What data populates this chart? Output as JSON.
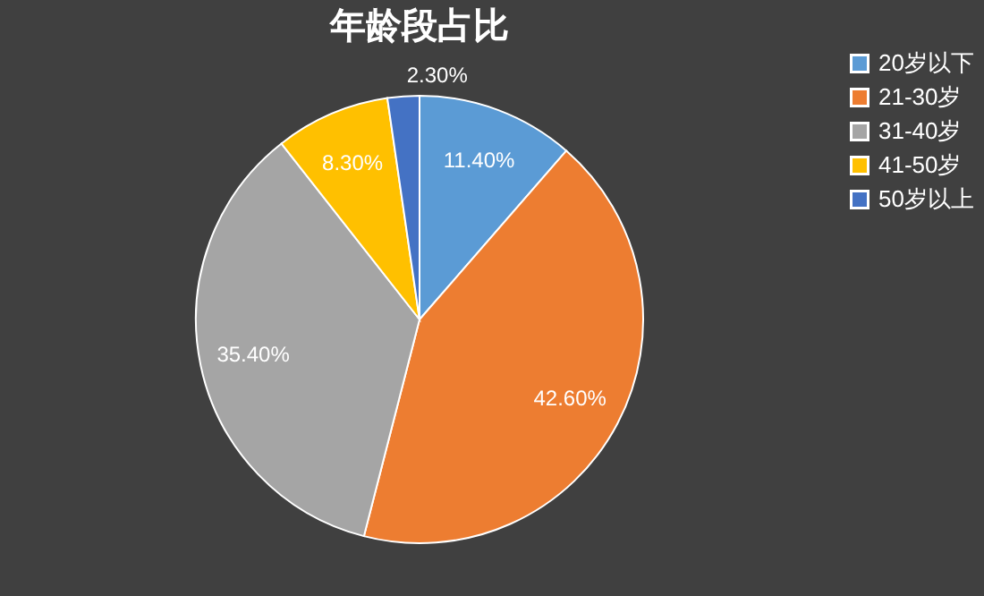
{
  "chart_data": {
    "type": "pie",
    "title": "年龄段占比",
    "categories": [
      "20岁以下",
      "21-30岁",
      "31-40岁",
      "41-50岁",
      "50岁以上"
    ],
    "values": [
      11.4,
      42.6,
      35.4,
      8.3,
      2.3
    ],
    "colors": [
      "#5b9bd5",
      "#ed7d31",
      "#a5a5a5",
      "#ffc000",
      "#4472c4"
    ],
    "value_labels": [
      "11.40%",
      "42.60%",
      "35.40%",
      "8.30%",
      "2.30%"
    ],
    "legend": "right"
  }
}
